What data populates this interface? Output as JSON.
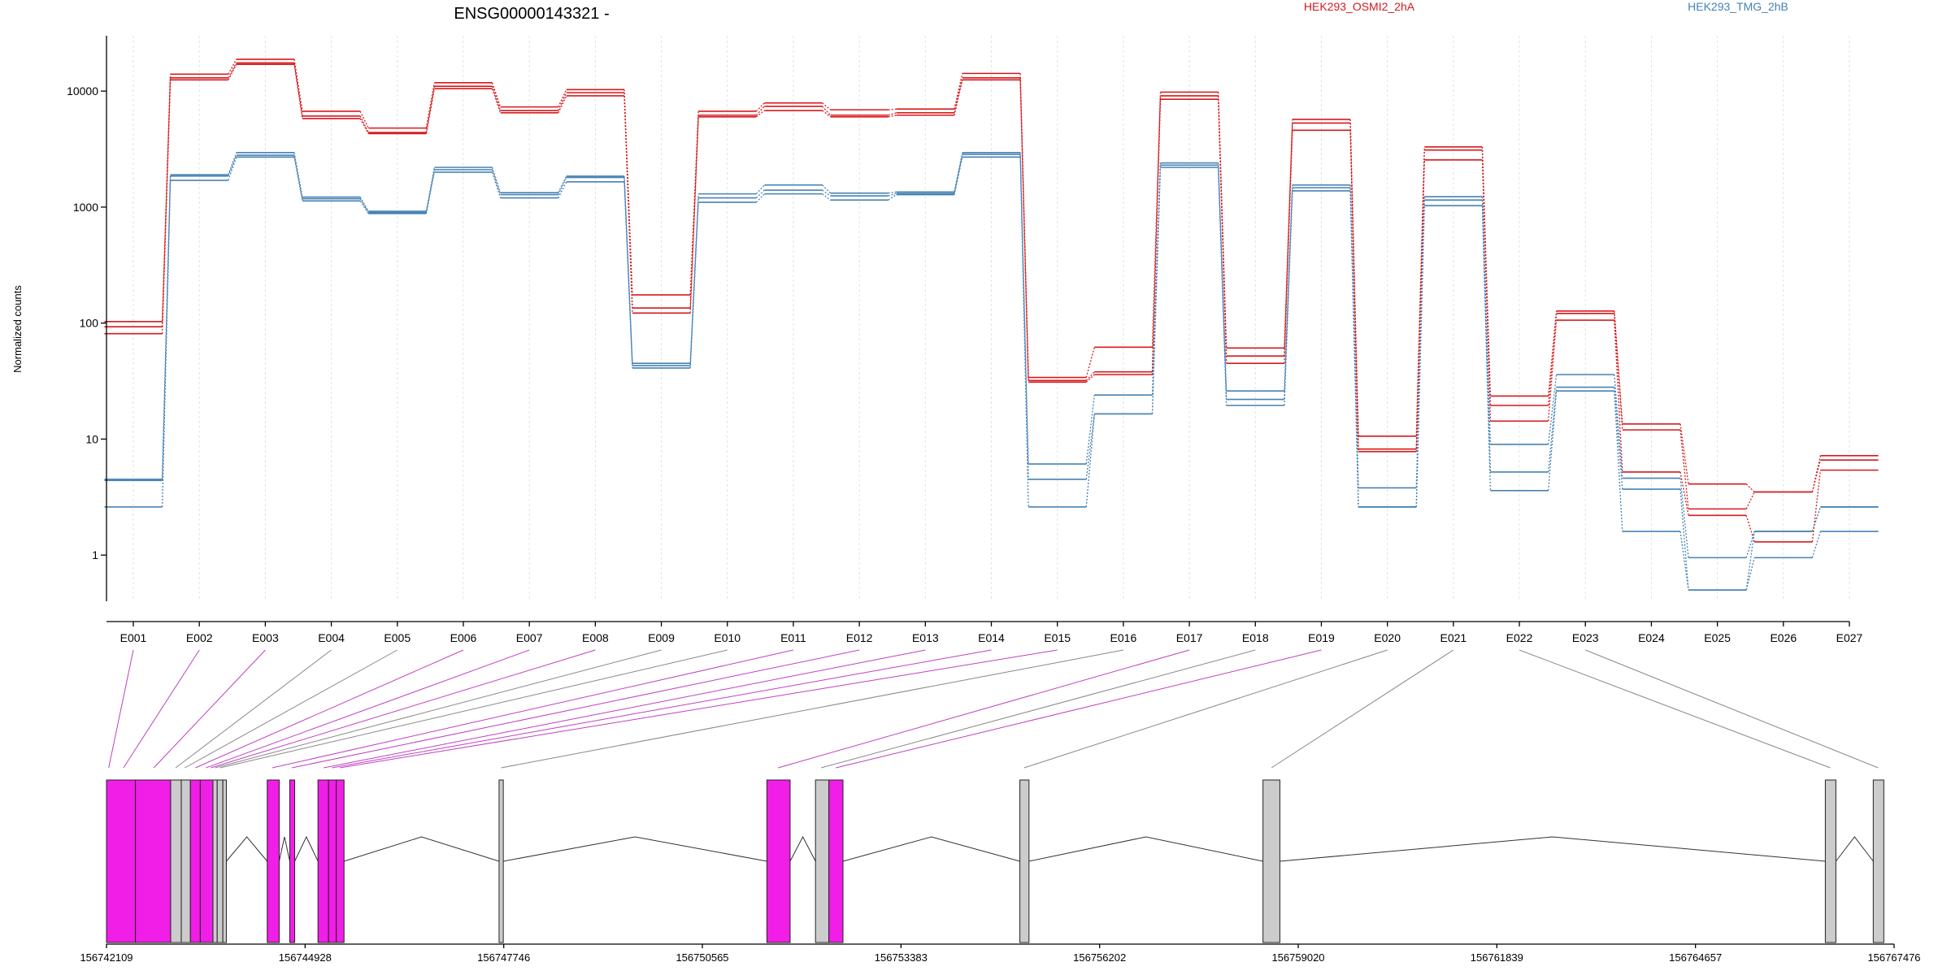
{
  "chart_data": {
    "type": "line",
    "title": "ENSG00000143321 -",
    "ylabel": "Normalized counts",
    "yscale": "log",
    "ylim": [
      0.4,
      30000
    ],
    "yticks": [
      1,
      10,
      100,
      1000,
      10000
    ],
    "ytick_labels": [
      "1",
      "10",
      "100",
      "1000",
      "10000"
    ],
    "grid": "vertical-dashed",
    "legend_placement": "top-right",
    "categories": [
      "E001",
      "E002",
      "E003",
      "E004",
      "E005",
      "E006",
      "E007",
      "E008",
      "E009",
      "E010",
      "E011",
      "E012",
      "E013",
      "E014",
      "E015",
      "E016",
      "E017",
      "E018",
      "E019",
      "E020",
      "E021",
      "E022",
      "E023",
      "E024",
      "E025",
      "E026",
      "E027"
    ],
    "series": [
      {
        "name": "HEK293_OSMI2_2hA",
        "color": "#d7191c",
        "values": [
          103,
          14000,
          18800,
          6700,
          4800,
          11800,
          7300,
          10300,
          175,
          6700,
          7900,
          6900,
          7000,
          14200,
          34,
          62,
          9800,
          61,
          5700,
          10.6,
          3300,
          23.5,
          127,
          13.5,
          4.1,
          3.5,
          7.2
        ]
      },
      {
        "name": "",
        "color": "#d7191c",
        "values": [
          93,
          13000,
          17500,
          6100,
          4400,
          11000,
          6800,
          9700,
          135,
          6200,
          7400,
          6200,
          6500,
          13000,
          32,
          38,
          9100,
          52,
          5300,
          8.2,
          3100,
          19.5,
          121,
          12,
          2.5,
          3.5,
          6.6
        ]
      },
      {
        "name": "",
        "color": "#d7191c",
        "values": [
          81,
          12500,
          17000,
          5800,
          4300,
          10500,
          6500,
          9100,
          122,
          6000,
          6800,
          6000,
          6200,
          12500,
          31,
          36,
          8500,
          45,
          4600,
          7.8,
          2550,
          14.3,
          106,
          5.2,
          2.2,
          1.3,
          5.4
        ]
      },
      {
        "name": "HEK293_TMG_2hB",
        "color": "#4682b4",
        "values": [
          4.5,
          1900,
          2950,
          1220,
          920,
          2200,
          1330,
          1850,
          45,
          1300,
          1550,
          1320,
          1350,
          2950,
          6.1,
          24,
          2400,
          26,
          1550,
          3.8,
          1230,
          9,
          36,
          4.6,
          0.95,
          1.6,
          2.6
        ]
      },
      {
        "name": "",
        "color": "#4682b4",
        "values": [
          4.4,
          1850,
          2800,
          1180,
          900,
          2100,
          1280,
          1800,
          43,
          1200,
          1400,
          1250,
          1310,
          2850,
          4.5,
          16.5,
          2300,
          22,
          1470,
          2.6,
          1150,
          5.2,
          28,
          3.7,
          0.5,
          1.6,
          2.6
        ]
      },
      {
        "name": "",
        "color": "#4682b4",
        "values": [
          2.6,
          1700,
          2700,
          1130,
          880,
          2000,
          1200,
          1650,
          41,
          1100,
          1300,
          1150,
          1280,
          2700,
          2.6,
          16.5,
          2200,
          19.5,
          1380,
          2.6,
          1030,
          3.6,
          26,
          1.6,
          0.5,
          0.95,
          1.6
        ]
      }
    ],
    "gene_model": {
      "coordinate_labels": [
        "156742109",
        "156744928",
        "156747746",
        "156750565",
        "156753383",
        "156756202",
        "156759020",
        "156761839",
        "156764657",
        "156767476"
      ],
      "coord_start": 156742109,
      "coord_end": 156767476,
      "exon_segments": [
        {
          "start": 156742109,
          "end": 156742520,
          "color": "#f01ee6"
        },
        {
          "start": 156742520,
          "end": 156743020,
          "color": "#f01ee6"
        },
        {
          "start": 156743020,
          "end": 156743170,
          "color": "#cccccc"
        },
        {
          "start": 156743170,
          "end": 156743300,
          "color": "#cccccc"
        },
        {
          "start": 156743300,
          "end": 156743440,
          "color": "#f01ee6"
        },
        {
          "start": 156743440,
          "end": 156743620,
          "color": "#f01ee6"
        },
        {
          "start": 156743620,
          "end": 156743680,
          "color": "#cccccc"
        },
        {
          "start": 156743680,
          "end": 156743760,
          "color": "#cccccc"
        },
        {
          "start": 156743760,
          "end": 156743810,
          "color": "#cccccc"
        },
        {
          "start": 156744390,
          "end": 156744560,
          "color": "#f01ee6"
        },
        {
          "start": 156744710,
          "end": 156744780,
          "color": "#f01ee6"
        },
        {
          "start": 156745110,
          "end": 156745260,
          "color": "#f01ee6"
        },
        {
          "start": 156745260,
          "end": 156745370,
          "color": "#f01ee6"
        },
        {
          "start": 156745370,
          "end": 156745480,
          "color": "#f01ee6"
        },
        {
          "start": 156747680,
          "end": 156747740,
          "color": "#cccccc"
        },
        {
          "start": 156751480,
          "end": 156751810,
          "color": "#f01ee6"
        },
        {
          "start": 156752170,
          "end": 156752360,
          "color": "#cccccc"
        },
        {
          "start": 156752360,
          "end": 156752560,
          "color": "#f01ee6"
        },
        {
          "start": 156755070,
          "end": 156755200,
          "color": "#cccccc"
        },
        {
          "start": 156758520,
          "end": 156758760,
          "color": "#cccccc"
        },
        {
          "start": 156766500,
          "end": 156766650,
          "color": "#cccccc"
        },
        {
          "start": 156767180,
          "end": 156767330,
          "color": "#cccccc"
        }
      ],
      "introns": [
        [
          156743810,
          156744390
        ],
        [
          156744560,
          156744710
        ],
        [
          156744780,
          156745110
        ],
        [
          156745480,
          156747680
        ],
        [
          156747740,
          156751480
        ],
        [
          156751810,
          156752170
        ],
        [
          156752560,
          156755070
        ],
        [
          156755200,
          156758520
        ],
        [
          156758760,
          156766500
        ],
        [
          156766650,
          156767180
        ]
      ],
      "exon_links": [
        {
          "exon": "E001",
          "coord": 156742140,
          "color": "#c040c0"
        },
        {
          "exon": "E002",
          "coord": 156742350,
          "color": "#c040c0"
        },
        {
          "exon": "E003",
          "coord": 156742780,
          "color": "#c040c0"
        },
        {
          "exon": "E004",
          "coord": 156743090,
          "color": "#888888"
        },
        {
          "exon": "E005",
          "coord": 156743220,
          "color": "#888888"
        },
        {
          "exon": "E006",
          "coord": 156743370,
          "color": "#c040c0"
        },
        {
          "exon": "E007",
          "coord": 156743520,
          "color": "#c040c0"
        },
        {
          "exon": "E008",
          "coord": 156743590,
          "color": "#c040c0"
        },
        {
          "exon": "E009",
          "coord": 156743650,
          "color": "#888888"
        },
        {
          "exon": "E010",
          "coord": 156743720,
          "color": "#888888"
        },
        {
          "exon": "E011",
          "coord": 156744460,
          "color": "#c040c0"
        },
        {
          "exon": "E012",
          "coord": 156744740,
          "color": "#c040c0"
        },
        {
          "exon": "E013",
          "coord": 156745190,
          "color": "#c040c0"
        },
        {
          "exon": "E014",
          "coord": 156745310,
          "color": "#c040c0"
        },
        {
          "exon": "E015",
          "coord": 156745420,
          "color": "#c040c0"
        },
        {
          "exon": "E016",
          "coord": 156747710,
          "color": "#888888"
        },
        {
          "exon": "E017",
          "coord": 156751640,
          "color": "#c040c0"
        },
        {
          "exon": "E018",
          "coord": 156752250,
          "color": "#888888"
        },
        {
          "exon": "E019",
          "coord": 156752460,
          "color": "#c040c0"
        },
        {
          "exon": "E020",
          "coord": 156755130,
          "color": "#888888"
        },
        {
          "exon": "E021",
          "coord": 156758640,
          "color": "#888888"
        },
        {
          "exon": "E022",
          "coord": 156766570,
          "color": "#888888"
        },
        {
          "exon": "E023",
          "coord": 156767250,
          "color": "#888888"
        }
      ]
    }
  }
}
